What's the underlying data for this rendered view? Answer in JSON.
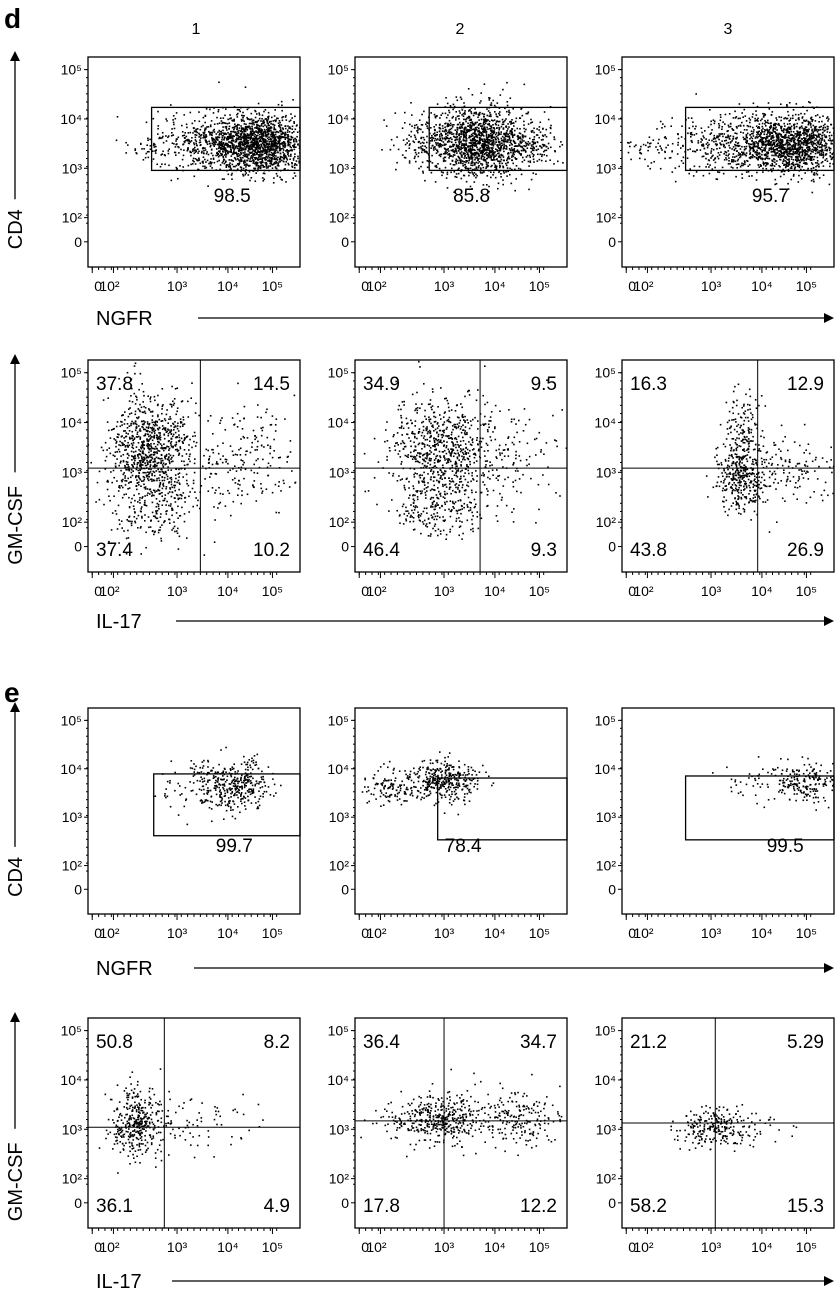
{
  "panels": [
    {
      "letter": "d",
      "columns": [
        "1",
        "2",
        "3"
      ]
    },
    {
      "letter": "e"
    }
  ],
  "ticks": {
    "y": [
      "10⁵",
      "10⁴",
      "10³",
      "10²",
      "0"
    ],
    "x": [
      "0",
      "10²",
      "10³",
      "10⁴",
      "10⁵"
    ]
  },
  "axis_titles": {
    "ngfr": "NGFR",
    "il17": "IL-17",
    "cd4": "CD4",
    "gmcsf": "GM-CSF"
  },
  "chart_data": [
    {
      "type": "scatter",
      "id": "d-ngfr-1",
      "x_axis_title": "NGFR",
      "y_axis_title": "CD4",
      "gate_percent": "98.5"
    },
    {
      "type": "scatter",
      "id": "d-ngfr-2",
      "x_axis_title": "NGFR",
      "y_axis_title": "CD4",
      "gate_percent": "85.8"
    },
    {
      "type": "scatter",
      "id": "d-ngfr-3",
      "x_axis_title": "NGFR",
      "y_axis_title": "CD4",
      "gate_percent": "95.7"
    },
    {
      "type": "scatter",
      "id": "d-il17-1",
      "x_axis_title": "IL-17",
      "y_axis_title": "GM-CSF",
      "quadrants": {
        "upper_left": "37.8",
        "upper_right": "14.5",
        "lower_left": "37.4",
        "lower_right": "10.2"
      }
    },
    {
      "type": "scatter",
      "id": "d-il17-2",
      "x_axis_title": "IL-17",
      "y_axis_title": "GM-CSF",
      "quadrants": {
        "upper_left": "34.9",
        "upper_right": "9.5",
        "lower_left": "46.4",
        "lower_right": "9.3"
      }
    },
    {
      "type": "scatter",
      "id": "d-il17-3",
      "x_axis_title": "IL-17",
      "y_axis_title": "GM-CSF",
      "quadrants": {
        "upper_left": "16.3",
        "upper_right": "12.9",
        "lower_left": "43.8",
        "lower_right": "26.9"
      }
    },
    {
      "type": "scatter",
      "id": "e-ngfr-1",
      "x_axis_title": "NGFR",
      "y_axis_title": "CD4",
      "gate_percent": "99.7"
    },
    {
      "type": "scatter",
      "id": "e-ngfr-2",
      "x_axis_title": "NGFR",
      "y_axis_title": "CD4",
      "gate_percent": "78.4"
    },
    {
      "type": "scatter",
      "id": "e-ngfr-3",
      "x_axis_title": "NGFR",
      "y_axis_title": "CD4",
      "gate_percent": "99.5"
    },
    {
      "type": "scatter",
      "id": "e-il17-1",
      "x_axis_title": "IL-17",
      "y_axis_title": "GM-CSF",
      "quadrants": {
        "upper_left": "50.8",
        "upper_right": "8.2",
        "lower_left": "36.1",
        "lower_right": "4.9"
      }
    },
    {
      "type": "scatter",
      "id": "e-il17-2",
      "x_axis_title": "IL-17",
      "y_axis_title": "GM-CSF",
      "quadrants": {
        "upper_left": "36.4",
        "upper_right": "34.7",
        "lower_left": "17.8",
        "lower_right": "12.2"
      }
    },
    {
      "type": "scatter",
      "id": "e-il17-3",
      "x_axis_title": "IL-17",
      "y_axis_title": "GM-CSF",
      "quadrants": {
        "upper_left": "21.2",
        "upper_right": "5.29",
        "lower_left": "58.2",
        "lower_right": "15.3"
      }
    }
  ]
}
